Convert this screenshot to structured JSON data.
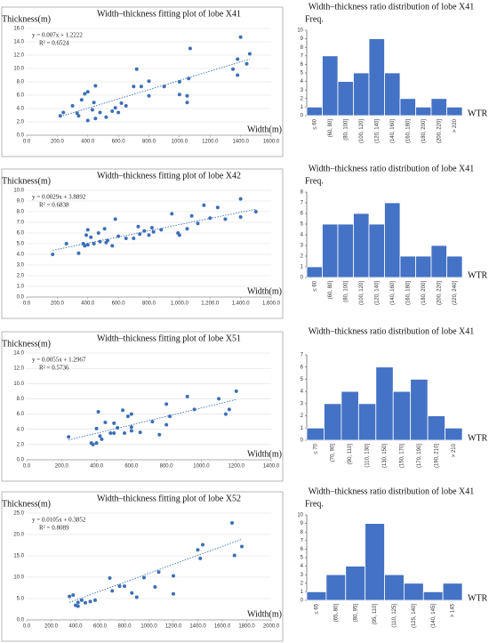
{
  "chart_data": [
    {
      "type": "scatter",
      "title": "Width–thickness fitting plot of lobe X41",
      "ylabel": "Thickness(m)",
      "xlabel": "Width(m)",
      "equation": "y = 0.007x + 1.2222",
      "r_squared": "R² = 0.6524",
      "color": "#3d6fb6",
      "grid": true,
      "x": [
        220,
        240,
        300,
        330,
        340,
        360,
        380,
        400,
        400,
        430,
        440,
        450,
        450,
        480,
        520,
        560,
        580,
        600,
        620,
        650,
        700,
        720,
        750,
        800,
        800,
        900,
        1000,
        1000,
        1050,
        1050,
        1060,
        1070,
        1350,
        1380,
        1380,
        1400,
        1440,
        1460
      ],
      "values": [
        2.9,
        3.4,
        4.4,
        3.3,
        2.9,
        5.3,
        6.2,
        6.5,
        2.2,
        3.8,
        4.9,
        7.4,
        2.5,
        3.4,
        2.7,
        3.6,
        4.1,
        3.4,
        4.8,
        4.4,
        7.3,
        9.9,
        7.3,
        8.1,
        5.9,
        7.3,
        6.1,
        8.0,
        5.9,
        4.9,
        8.5,
        13.0,
        9.9,
        9.0,
        11.4,
        14.7,
        10.7,
        12.2
      ],
      "trendline": {
        "x": [
          220,
          1460
        ],
        "values": [
          2.8,
          11.4
        ]
      },
      "xlim": [
        0,
        1600
      ],
      "ylim": [
        0,
        16
      ],
      "xticks": [
        {
          "value": 0,
          "label": "0.0"
        },
        {
          "value": 200,
          "label": "200.0"
        },
        {
          "value": 400,
          "label": "400.0"
        },
        {
          "value": 600,
          "label": "600.0"
        },
        {
          "value": 800,
          "label": "800.0"
        },
        {
          "value": 1000,
          "label": "1000.0"
        },
        {
          "value": 1200,
          "label": "1200.0"
        },
        {
          "value": 1400,
          "label": "1400.0"
        },
        {
          "value": 1600,
          "label": "1600.0"
        }
      ],
      "yticks": [
        {
          "value": 0,
          "label": "0.0"
        },
        {
          "value": 2,
          "label": "2.0"
        },
        {
          "value": 4,
          "label": "4.0"
        },
        {
          "value": 6,
          "label": "6.0"
        },
        {
          "value": 8,
          "label": "8.0"
        },
        {
          "value": 10,
          "label": "10.0"
        },
        {
          "value": 12,
          "label": "12.0"
        },
        {
          "value": 14,
          "label": "14.0"
        },
        {
          "value": 16,
          "label": "16.0"
        }
      ]
    },
    {
      "type": "bar",
      "title": "Width–thickness ratio distribution of lobe X41",
      "ylabel": "Freq.",
      "xlabel": "WTR",
      "color": "#4472c4",
      "categories": [
        "≤ 60",
        "(60, 80]",
        "(80, 100]",
        "(100, 120]",
        "(120, 140]",
        "(140, 160]",
        "(160, 180]",
        "(180, 200]",
        "(200, 220]",
        "> 220"
      ],
      "values": [
        1,
        7,
        4,
        5,
        9,
        5,
        2,
        1,
        2,
        1
      ],
      "ylim": [
        0,
        10
      ],
      "yticks": [
        0,
        1,
        2,
        3,
        4,
        5,
        6,
        7,
        8,
        9,
        10
      ]
    },
    {
      "type": "scatter",
      "title": "Width–thickness fitting plot of lobe X42",
      "ylabel": "Thickness(m)",
      "xlabel": "Width(m)",
      "equation": "y = 0.0029x + 3.8892",
      "r_squared": "R² = 0.6838",
      "color": "#3d6fb6",
      "grid": true,
      "x": [
        170,
        260,
        340,
        370,
        380,
        390,
        400,
        400,
        420,
        440,
        470,
        480,
        510,
        520,
        530,
        560,
        580,
        600,
        650,
        700,
        730,
        740,
        770,
        800,
        820,
        830,
        880,
        950,
        990,
        1000,
        1050,
        1080,
        1120,
        1160,
        1200,
        1250,
        1300,
        1400,
        1400,
        1500
      ],
      "values": [
        4.0,
        5.0,
        4.1,
        5.0,
        4.8,
        5.8,
        6.3,
        4.9,
        5.6,
        5.0,
        6.0,
        5.2,
        6.4,
        5.1,
        5.3,
        4.8,
        7.3,
        5.7,
        5.5,
        5.5,
        6.6,
        5.9,
        6.2,
        5.8,
        6.5,
        6.1,
        6.3,
        7.8,
        6.0,
        5.8,
        6.4,
        7.6,
        6.9,
        8.6,
        7.4,
        8.4,
        7.3,
        9.2,
        7.5,
        8.0
      ],
      "trendline": {
        "x": [
          170,
          1500
        ],
        "values": [
          4.38,
          8.24
        ]
      },
      "xlim": [
        0,
        1600
      ],
      "ylim": [
        0,
        10
      ],
      "xticks": [
        {
          "value": 0,
          "label": "0.0"
        },
        {
          "value": 200,
          "label": "200.0"
        },
        {
          "value": 400,
          "label": "400.0"
        },
        {
          "value": 600,
          "label": "600.0"
        },
        {
          "value": 800,
          "label": "800.0"
        },
        {
          "value": 1000,
          "label": "1,000.0"
        },
        {
          "value": 1200,
          "label": "1,200.0"
        },
        {
          "value": 1400,
          "label": "1,400.0"
        },
        {
          "value": 1600,
          "label": "1,600.0"
        }
      ],
      "yticks": [
        {
          "value": 0,
          "label": "0.0"
        },
        {
          "value": 1,
          "label": "1.0"
        },
        {
          "value": 2,
          "label": "2.0"
        },
        {
          "value": 3,
          "label": "3.0"
        },
        {
          "value": 4,
          "label": "4.0"
        },
        {
          "value": 5,
          "label": "5.0"
        },
        {
          "value": 6,
          "label": "6.0"
        },
        {
          "value": 7,
          "label": "7.0"
        },
        {
          "value": 8,
          "label": "8.0"
        },
        {
          "value": 9,
          "label": "9.0"
        },
        {
          "value": 10,
          "label": "10.0"
        }
      ]
    },
    {
      "type": "bar",
      "title": "Width–thickness ratio distribution of lobe X41",
      "ylabel": "Freq.",
      "xlabel": "WTR",
      "color": "#4472c4",
      "categories": [
        "≤ 60",
        "(60, 80]",
        "(80, 100]",
        "(100, 120]",
        "(120, 140]",
        "(140, 160]",
        "(160, 180]",
        "(180, 200]",
        "(200, 220]",
        "(220, 240]"
      ],
      "values": [
        1,
        5,
        5,
        6,
        5,
        7,
        2,
        2,
        3,
        2
      ],
      "ylim": [
        0,
        8
      ],
      "yticks": [
        0,
        1,
        2,
        3,
        4,
        5,
        6,
        7,
        8
      ]
    },
    {
      "type": "scatter",
      "title": "Width–thickness fitting plot of lobe X51",
      "ylabel": "Thickness(m)",
      "xlabel": "Width(m)",
      "equation": "y = 0.0055x + 1.2967",
      "r_squared": "R² = 0.5736",
      "color": "#3d6fb6",
      "grid": true,
      "x": [
        240,
        370,
        380,
        400,
        400,
        410,
        420,
        430,
        450,
        480,
        500,
        500,
        520,
        550,
        560,
        580,
        600,
        600,
        600,
        650,
        720,
        760,
        800,
        800,
        820,
        920,
        960,
        1100,
        1140,
        1160,
        1200
      ],
      "values": [
        3.0,
        2.2,
        2.0,
        2.2,
        4.1,
        6.3,
        3.1,
        2.7,
        4.9,
        3.5,
        3.5,
        4.8,
        4.2,
        6.5,
        3.5,
        5.7,
        3.8,
        6.0,
        4.3,
        3.6,
        5.0,
        3.3,
        4.6,
        7.3,
        5.7,
        8.3,
        6.6,
        8.0,
        6.0,
        6.6,
        9.0
      ],
      "trendline": {
        "x": [
          240,
          1200
        ],
        "values": [
          2.6,
          7.9
        ]
      },
      "xlim": [
        0,
        1400
      ],
      "ylim": [
        0,
        14
      ],
      "xticks": [
        {
          "value": 0,
          "label": "0.0"
        },
        {
          "value": 200,
          "label": "200.0"
        },
        {
          "value": 400,
          "label": "400.0"
        },
        {
          "value": 600,
          "label": "600.0"
        },
        {
          "value": 800,
          "label": "800.0"
        },
        {
          "value": 1000,
          "label": "1000.0"
        },
        {
          "value": 1200,
          "label": "1200.0"
        },
        {
          "value": 1400,
          "label": "1400.0"
        }
      ],
      "yticks": [
        {
          "value": 0,
          "label": "0.0"
        },
        {
          "value": 2,
          "label": "2.0"
        },
        {
          "value": 4,
          "label": "4.0"
        },
        {
          "value": 6,
          "label": "6.0"
        },
        {
          "value": 8,
          "label": "8.0"
        },
        {
          "value": 10,
          "label": "10.0"
        },
        {
          "value": 12,
          "label": "12.0"
        },
        {
          "value": 14,
          "label": "14.0"
        }
      ]
    },
    {
      "type": "bar",
      "title": "Width–thickness ratio distribution of lobe X41",
      "xlabel": "WTR",
      "color": "#4472c4",
      "categories": [
        "≤ 70",
        "(70, 90]",
        "(90, 110]",
        "(110, 130]",
        "(130, 150]",
        "(150, 170]",
        "(170, 190]",
        "(190, 210]",
        "> 210"
      ],
      "values": [
        1,
        3,
        4,
        3,
        6,
        4,
        5,
        2,
        1
      ],
      "ylim": [
        0,
        7
      ],
      "yticks": [
        0,
        1,
        2,
        3,
        4,
        5,
        6,
        7
      ]
    },
    {
      "type": "scatter",
      "title": "Width–thickness fitting plot of lobe X52",
      "ylabel": "Thickness(m)",
      "xlabel": "Width(m)",
      "equation": "y = 0.0105x + 0.3852",
      "r_squared": "R² = 0.8089",
      "color": "#3d6fb6",
      "grid": true,
      "x": [
        350,
        380,
        400,
        420,
        420,
        450,
        480,
        520,
        560,
        680,
        700,
        760,
        800,
        860,
        900,
        960,
        1050,
        1080,
        1200,
        1200,
        1400,
        1420,
        1440,
        1680,
        1700,
        1760
      ],
      "values": [
        5.5,
        5.8,
        3.4,
        4.1,
        3.2,
        4.6,
        4.0,
        4.3,
        4.6,
        9.8,
        6.8,
        7.9,
        7.9,
        6.3,
        5.3,
        9.9,
        7.7,
        11.2,
        10.3,
        6.1,
        16.4,
        14.4,
        17.6,
        22.7,
        15.1,
        17.2
      ],
      "trendline": {
        "x": [
          350,
          1760
        ],
        "values": [
          4.1,
          18.9
        ]
      },
      "xlim": [
        0,
        2000
      ],
      "ylim": [
        0,
        25
      ],
      "xticks": [
        {
          "value": 0,
          "label": "0.0"
        },
        {
          "value": 200,
          "label": "200.0"
        },
        {
          "value": 400,
          "label": "400.0"
        },
        {
          "value": 600,
          "label": "600.0"
        },
        {
          "value": 800,
          "label": "800.0"
        },
        {
          "value": 1000,
          "label": "1000.0"
        },
        {
          "value": 1200,
          "label": "1200.0"
        },
        {
          "value": 1400,
          "label": "1400.0"
        },
        {
          "value": 1600,
          "label": "1600.0"
        },
        {
          "value": 1800,
          "label": "1800.0"
        },
        {
          "value": 2000,
          "label": "2000.0"
        }
      ],
      "yticks": [
        {
          "value": 0,
          "label": "0.0"
        },
        {
          "value": 5,
          "label": "5.0"
        },
        {
          "value": 10,
          "label": "10.0"
        },
        {
          "value": 15,
          "label": "15.0"
        },
        {
          "value": 20,
          "label": "20.0"
        },
        {
          "value": 25,
          "label": "25.0"
        }
      ]
    },
    {
      "type": "bar",
      "title": "Width–thickness ratio distribution of lobe X41",
      "ylabel": "Freq.",
      "xlabel": "WTR",
      "color": "#4472c4",
      "categories": [
        "≤ 65",
        "(65, 80]",
        "(80, 95]",
        "(95, 110]",
        "(110, 125]",
        "(125, 140]",
        "(140, 145]",
        "> 145"
      ],
      "values": [
        1,
        3,
        4,
        9,
        3,
        2,
        1,
        2
      ],
      "ylim": [
        0,
        10
      ],
      "yticks": [
        0,
        1,
        2,
        3,
        4,
        5,
        6,
        7,
        8,
        9,
        10
      ]
    }
  ]
}
